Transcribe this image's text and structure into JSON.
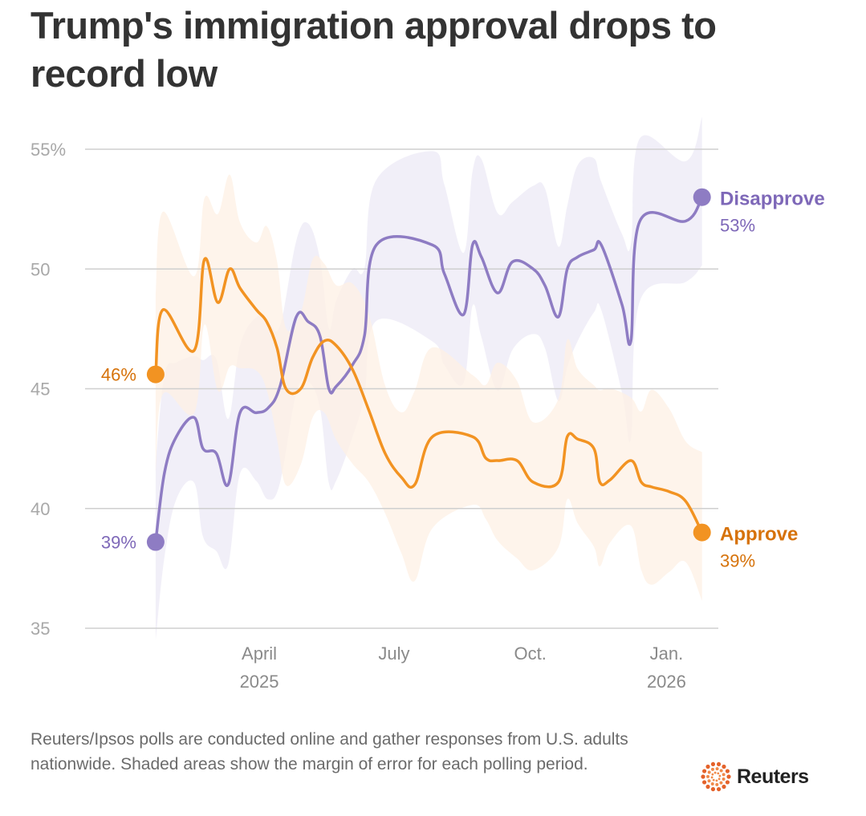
{
  "title": "Trump's immigration approval drops to record low",
  "footnote": "Reuters/Ipsos polls are conducted online and gather responses from U.S. adults nationwide. Shaded areas show the margin of error for each polling period.",
  "logo_text": "Reuters",
  "chart_data": {
    "type": "line",
    "title": "Trump's immigration approval drops to record low",
    "ylim": [
      35,
      55
    ],
    "yticks": [
      {
        "value": 55,
        "label": "55%"
      },
      {
        "value": 50,
        "label": "50"
      },
      {
        "value": 45,
        "label": "45"
      },
      {
        "value": 40,
        "label": "40"
      },
      {
        "value": 35,
        "label": "35"
      }
    ],
    "xlim": [
      "2025-01-21",
      "2026-01-25"
    ],
    "xticks": [
      {
        "date": "2025-04-01",
        "label": "April",
        "sublabel": "2025"
      },
      {
        "date": "2025-07-01",
        "label": "July",
        "sublabel": ""
      },
      {
        "date": "2025-10-01",
        "label": "Oct.",
        "sublabel": ""
      },
      {
        "date": "2026-01-01",
        "label": "Jan.",
        "sublabel": "2026"
      }
    ],
    "grid": true,
    "shaded_band": "margin of error",
    "series": [
      {
        "name": "Disapprove",
        "color": "#8e7cc3",
        "label_color": "#7e68b8",
        "band_color": "#ece9f6",
        "start_label": "39%",
        "end_label": "53%",
        "margin_of_error": 3.3,
        "points": [
          [
            "2025-01-21",
            38.6
          ],
          [
            "2025-01-27",
            41.5
          ],
          [
            "2025-02-04",
            43.0
          ],
          [
            "2025-02-16",
            43.8
          ],
          [
            "2025-02-22",
            42.5
          ],
          [
            "2025-03-03",
            42.3
          ],
          [
            "2025-03-11",
            41.0
          ],
          [
            "2025-03-19",
            44.0
          ],
          [
            "2025-03-30",
            44.0
          ],
          [
            "2025-04-07",
            44.2
          ],
          [
            "2025-04-15",
            45.1
          ],
          [
            "2025-04-26",
            48.0
          ],
          [
            "2025-05-04",
            47.8
          ],
          [
            "2025-05-12",
            47.2
          ],
          [
            "2025-05-18",
            45.0
          ],
          [
            "2025-05-23",
            45.1
          ],
          [
            "2025-06-03",
            46.0
          ],
          [
            "2025-06-11",
            47.2
          ],
          [
            "2025-06-19",
            51.0
          ],
          [
            "2025-07-27",
            51.0
          ],
          [
            "2025-08-04",
            49.8
          ],
          [
            "2025-08-17",
            48.1
          ],
          [
            "2025-08-23",
            51.0
          ],
          [
            "2025-08-29",
            50.5
          ],
          [
            "2025-09-09",
            49.0
          ],
          [
            "2025-09-19",
            50.3
          ],
          [
            "2025-10-03",
            50.0
          ],
          [
            "2025-10-11",
            49.3
          ],
          [
            "2025-10-20",
            48.0
          ],
          [
            "2025-10-26",
            50.0
          ],
          [
            "2025-11-02",
            50.5
          ],
          [
            "2025-11-13",
            50.8
          ],
          [
            "2025-11-18",
            51.0
          ],
          [
            "2025-12-02",
            48.5
          ],
          [
            "2025-12-08",
            47.0
          ],
          [
            "2025-12-14",
            52.0
          ],
          [
            "2026-01-14",
            52.0
          ],
          [
            "2026-01-25",
            53.0
          ]
        ]
      },
      {
        "name": "Approve",
        "color": "#f29322",
        "label_color": "#d6720a",
        "band_color": "#fdf0e4",
        "start_label": "46%",
        "end_label": "39%",
        "margin_of_error": 3.3,
        "points": [
          [
            "2025-01-21",
            45.6
          ],
          [
            "2025-01-26",
            48.3
          ],
          [
            "2025-02-16",
            46.6
          ],
          [
            "2025-02-23",
            50.4
          ],
          [
            "2025-03-04",
            48.6
          ],
          [
            "2025-03-12",
            50.0
          ],
          [
            "2025-03-19",
            49.2
          ],
          [
            "2025-03-30",
            48.3
          ],
          [
            "2025-04-06",
            47.8
          ],
          [
            "2025-04-13",
            46.7
          ],
          [
            "2025-04-19",
            45.0
          ],
          [
            "2025-04-29",
            45.0
          ],
          [
            "2025-05-07",
            46.3
          ],
          [
            "2025-05-15",
            47.0
          ],
          [
            "2025-05-23",
            46.8
          ],
          [
            "2025-06-03",
            45.8
          ],
          [
            "2025-06-14",
            44.1
          ],
          [
            "2025-06-25",
            42.3
          ],
          [
            "2025-07-06",
            41.3
          ],
          [
            "2025-07-15",
            41.0
          ],
          [
            "2025-07-27",
            43.0
          ],
          [
            "2025-08-23",
            43.0
          ],
          [
            "2025-09-01",
            42.1
          ],
          [
            "2025-09-09",
            42.0
          ],
          [
            "2025-09-22",
            42.0
          ],
          [
            "2025-10-03",
            41.1
          ],
          [
            "2025-10-20",
            41.1
          ],
          [
            "2025-10-26",
            43.0
          ],
          [
            "2025-11-02",
            42.9
          ],
          [
            "2025-11-13",
            42.5
          ],
          [
            "2025-11-17",
            41.1
          ],
          [
            "2025-11-24",
            41.2
          ],
          [
            "2025-12-08",
            42.0
          ],
          [
            "2025-12-15",
            41.1
          ],
          [
            "2025-12-22",
            40.9
          ],
          [
            "2026-01-03",
            40.7
          ],
          [
            "2026-01-14",
            40.3
          ],
          [
            "2026-01-25",
            39.0
          ]
        ]
      }
    ]
  }
}
